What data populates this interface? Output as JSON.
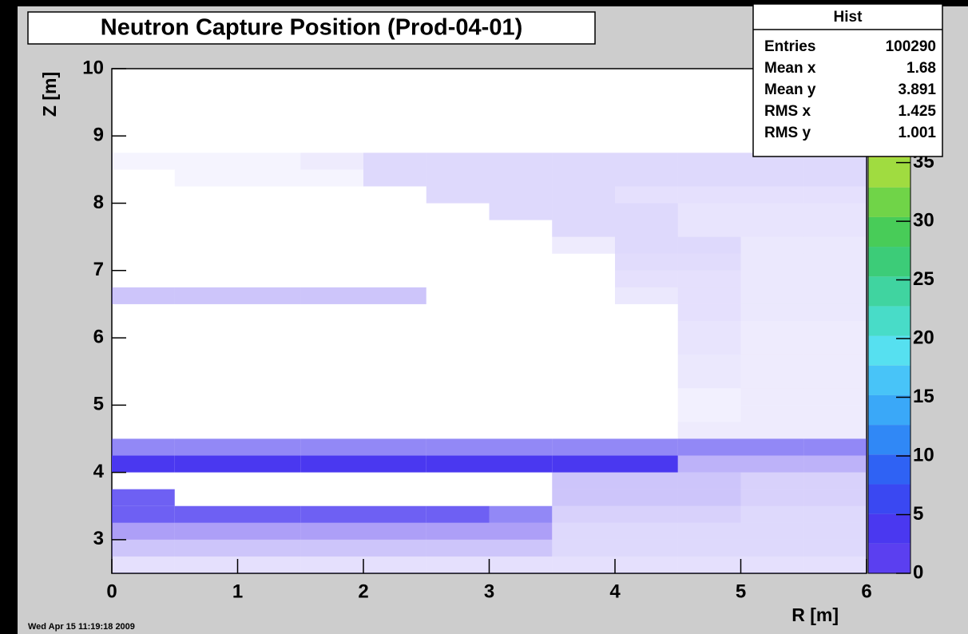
{
  "chart_data": {
    "type": "hist2d",
    "title": "Neutron Capture Position (Prod-04-01)",
    "xlabel": "R [m]",
    "ylabel": "Z [m]",
    "date": "Wed Apr 15 11:19:18 2009",
    "xlim": [
      0,
      6
    ],
    "ylim": [
      2.5,
      10
    ],
    "xticks": [
      0,
      1,
      2,
      3,
      4,
      5,
      6
    ],
    "yticks": [
      3,
      4,
      5,
      6,
      7,
      8,
      9,
      10
    ],
    "zlim": [
      0,
      43
    ],
    "zticks": [
      0,
      5,
      10,
      15,
      20,
      25,
      30,
      35
    ],
    "palette": [
      "#5b3ff0",
      "#4a38f0",
      "#3a48f2",
      "#2f62f4",
      "#3088f6",
      "#3aa8f8",
      "#48c4f8",
      "#56e0f0",
      "#48dcc8",
      "#40d4a0",
      "#3ccc78",
      "#48cc58",
      "#70d448",
      "#a0dc40",
      "#cce03c",
      "#ecd834",
      "#f8c830"
    ],
    "xbins": [
      0,
      0.5,
      1,
      1.5,
      2,
      2.5,
      3,
      3.5,
      4,
      4.5,
      5,
      5.5,
      6
    ],
    "ybins": [
      2.5,
      2.75,
      3,
      3.25,
      3.5,
      3.75,
      4,
      4.25,
      4.5,
      4.75,
      5,
      5.25,
      5.5,
      5.75,
      6,
      6.25,
      6.5,
      6.75,
      7,
      7.25,
      7.5,
      7.75,
      8,
      8.25,
      8.5,
      8.75,
      9,
      9.25,
      9.5,
      9.75,
      10
    ],
    "z": [
      [
        0.8,
        0.8,
        0.8,
        0.8,
        0.8,
        0.8,
        0.8,
        0.8,
        0.8,
        0.8,
        0.8,
        0.8
      ],
      [
        1.5,
        1.5,
        1.5,
        1.5,
        1.5,
        1.5,
        1.5,
        1,
        1,
        1,
        1,
        1
      ],
      [
        2.5,
        2.5,
        2.5,
        2.5,
        2.5,
        2.5,
        2.5,
        1,
        1,
        1,
        1,
        1
      ],
      [
        4,
        4,
        4,
        4,
        4,
        4,
        3,
        1.2,
        1.2,
        1.2,
        1,
        1
      ],
      [
        4,
        0,
        0,
        0,
        0,
        0,
        0,
        1.5,
        1.5,
        1.5,
        1.2,
        1.2
      ],
      [
        0,
        0,
        0,
        0,
        0,
        0,
        0,
        1.5,
        1.5,
        1.5,
        1.2,
        1.2
      ],
      [
        5,
        5,
        5,
        5,
        5,
        5,
        5,
        5,
        5,
        2,
        2,
        2
      ],
      [
        3,
        3,
        3,
        3,
        3,
        3,
        3,
        3,
        3,
        3,
        3,
        3
      ],
      [
        0,
        0,
        0,
        0,
        0,
        0,
        0,
        0,
        0,
        0.5,
        0.5,
        0.5
      ],
      [
        0,
        0,
        0,
        0,
        0,
        0,
        0,
        0,
        0,
        0.4,
        0.5,
        0.5
      ],
      [
        0,
        0,
        0,
        0,
        0,
        0,
        0,
        0,
        0,
        0.4,
        0.5,
        0.5
      ],
      [
        0,
        0,
        0,
        0,
        0,
        0,
        0,
        0,
        0,
        0.6,
        0.5,
        0.5
      ],
      [
        0,
        0,
        0,
        0,
        0,
        0,
        0,
        0,
        0,
        0.6,
        0.5,
        0.5
      ],
      [
        0,
        0,
        0,
        0,
        0,
        0,
        0,
        0,
        0,
        0.7,
        0.5,
        0.5
      ],
      [
        0,
        0,
        0,
        0,
        0,
        0,
        0,
        0,
        0,
        0.7,
        0.5,
        0.5
      ],
      [
        0,
        0,
        0,
        0,
        0,
        0,
        0,
        0,
        0,
        0.8,
        0.6,
        0.6
      ],
      [
        1.5,
        1.5,
        1.5,
        1.5,
        1.5,
        0,
        0,
        0,
        0.6,
        0.8,
        0.6,
        0.6
      ],
      [
        0,
        0,
        0,
        0,
        0,
        0,
        0,
        0,
        0.8,
        0.8,
        0.6,
        0.6
      ],
      [
        0,
        0,
        0,
        0,
        0,
        0,
        0,
        0,
        0.9,
        0.9,
        0.6,
        0.6
      ],
      [
        0,
        0,
        0,
        0,
        0,
        0,
        0,
        0.5,
        1,
        1,
        0.6,
        0.6
      ],
      [
        0,
        0,
        0,
        0,
        0,
        0,
        0,
        1,
        1,
        0.7,
        0.7,
        0.7
      ],
      [
        0,
        0,
        0,
        0,
        0,
        0,
        1,
        1,
        1,
        0.7,
        0.7,
        0.7
      ],
      [
        0,
        0,
        0,
        0,
        0,
        1,
        1,
        1,
        0.8,
        0.8,
        0.8,
        0.8
      ],
      [
        0,
        0.3,
        0.3,
        0.3,
        1,
        1,
        1,
        1,
        1,
        1,
        1,
        1
      ],
      [
        0.3,
        0.3,
        0.3,
        0.5,
        1,
        1,
        1,
        1,
        1,
        1,
        1,
        1
      ],
      [
        0,
        0,
        0,
        0,
        0,
        0,
        0,
        0,
        0,
        0,
        0,
        0
      ],
      [
        0,
        0,
        0,
        0,
        0,
        0,
        0,
        0,
        0,
        0,
        0,
        0
      ],
      [
        0,
        0,
        0,
        0,
        0,
        0,
        0,
        0,
        0,
        0,
        0,
        0
      ],
      [
        0,
        0,
        0,
        0,
        0,
        0,
        0,
        0,
        0,
        0,
        0,
        0
      ],
      [
        0,
        0,
        0,
        0,
        0,
        0,
        0,
        0,
        0,
        0,
        0,
        0
      ]
    ],
    "stats": {
      "title": "Hist",
      "rows": [
        {
          "label": "Entries",
          "value": 100290
        },
        {
          "label": "Mean x",
          "value": 1.68
        },
        {
          "label": "Mean y",
          "value": 3.891
        },
        {
          "label": "RMS x",
          "value": 1.425
        },
        {
          "label": "RMS y",
          "value": 1.001
        }
      ]
    }
  }
}
